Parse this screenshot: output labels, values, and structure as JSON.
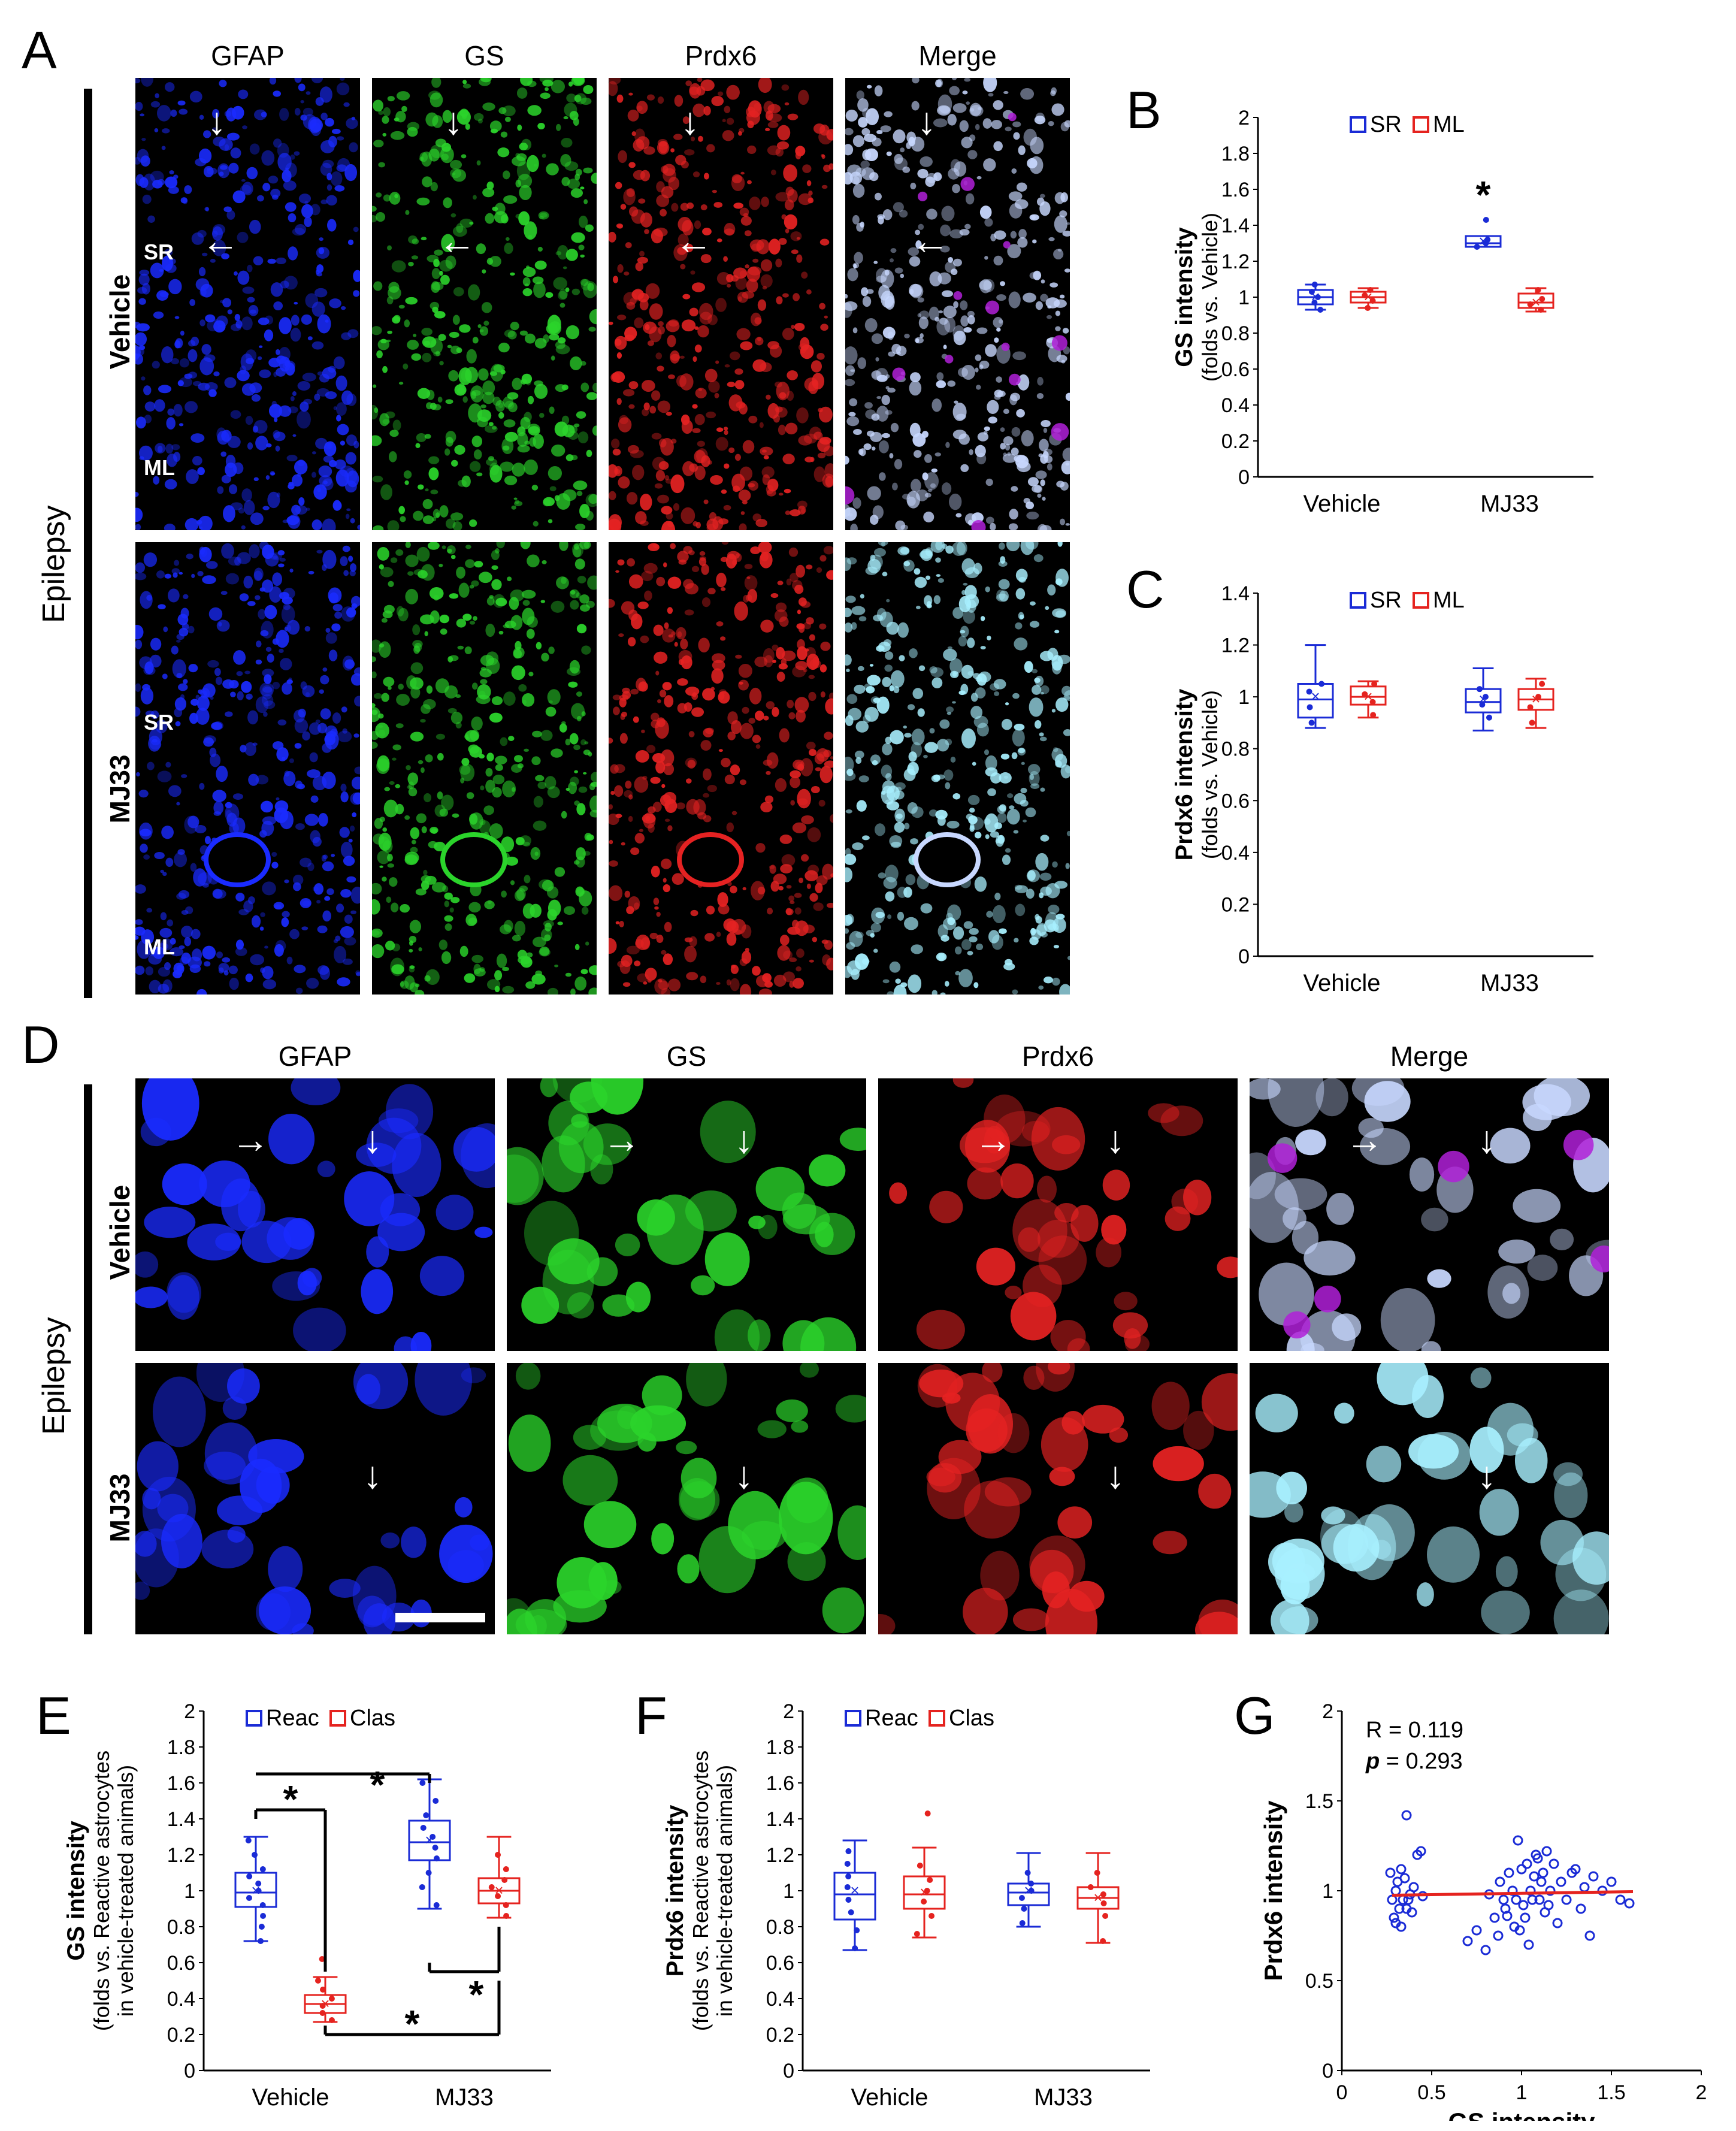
{
  "panel_labels": {
    "A": "A",
    "B": "B",
    "C": "C",
    "D": "D",
    "E": "E",
    "F": "F",
    "G": "G"
  },
  "channels": [
    "GFAP",
    "GS",
    "Prdx6",
    "Merge"
  ],
  "rows": [
    "Vehicle",
    "MJ33"
  ],
  "condition": "Epilepsy",
  "layers": {
    "sr": "SR",
    "ml": "ML"
  },
  "colors": {
    "blue": "#1a2bd6",
    "red": "#e5231f",
    "green": "#28c828",
    "black": "#000000"
  },
  "chart_data": [
    {
      "id": "B",
      "type": "box",
      "ylabel": "GS intensity",
      "ylabel2": "(folds vs. Vehicle)",
      "categories": [
        "Vehicle",
        "MJ33"
      ],
      "legend": [
        "SR",
        "ML"
      ],
      "ylim": [
        0,
        2
      ],
      "yticks": [
        "0",
        "0.2",
        "0.4",
        "0.6",
        "0.8",
        "1",
        "1.2",
        "1.4",
        "1.6",
        "1.8",
        "2"
      ],
      "series": [
        {
          "name": "SR",
          "color": "#1a2bd6",
          "boxes": [
            {
              "min": 0.93,
              "q1": 0.96,
              "median": 1.0,
              "q3": 1.04,
              "max": 1.07,
              "mean": 1.0,
              "points": [
                0.93,
                0.97,
                1.0,
                1.03,
                1.07
              ]
            },
            {
              "min": 1.28,
              "q1": 1.28,
              "median": 1.3,
              "q3": 1.34,
              "max": 1.34,
              "mean": 1.31,
              "points": [
                1.28,
                1.3,
                1.32,
                1.43
              ]
            }
          ]
        },
        {
          "name": "ML",
          "color": "#e5231f",
          "boxes": [
            {
              "min": 0.94,
              "q1": 0.97,
              "median": 1.0,
              "q3": 1.03,
              "max": 1.05,
              "mean": 1.0,
              "points": [
                0.94,
                0.98,
                1.01,
                1.04
              ]
            },
            {
              "min": 0.92,
              "q1": 0.94,
              "median": 0.97,
              "q3": 1.02,
              "max": 1.05,
              "mean": 0.97,
              "points": [
                0.93,
                0.96,
                0.99,
                1.04
              ]
            }
          ]
        }
      ],
      "annotations": [
        "*"
      ]
    },
    {
      "id": "C",
      "type": "box",
      "ylabel": "Prdx6 intensity",
      "ylabel2": "(folds vs. Vehicle)",
      "categories": [
        "Vehicle",
        "MJ33"
      ],
      "legend": [
        "SR",
        "ML"
      ],
      "ylim": [
        0,
        1.4
      ],
      "yticks": [
        "0",
        "0.2",
        "0.4",
        "0.6",
        "0.8",
        "1",
        "1.2",
        "1.4"
      ],
      "series": [
        {
          "name": "SR",
          "color": "#1a2bd6",
          "boxes": [
            {
              "min": 0.88,
              "q1": 0.92,
              "median": 0.99,
              "q3": 1.05,
              "max": 1.2,
              "mean": 1.0,
              "points": [
                0.9,
                0.96,
                1.02,
                1.05
              ]
            },
            {
              "min": 0.87,
              "q1": 0.94,
              "median": 0.98,
              "q3": 1.03,
              "max": 1.11,
              "mean": 0.99,
              "points": [
                0.92,
                0.97,
                1.0,
                1.03
              ]
            }
          ]
        },
        {
          "name": "ML",
          "color": "#e5231f",
          "boxes": [
            {
              "min": 0.92,
              "q1": 0.97,
              "median": 1.0,
              "q3": 1.04,
              "max": 1.06,
              "mean": 1.0,
              "points": [
                0.93,
                0.98,
                1.01,
                1.05
              ]
            },
            {
              "min": 0.88,
              "q1": 0.95,
              "median": 0.99,
              "q3": 1.03,
              "max": 1.07,
              "mean": 0.99,
              "points": [
                0.9,
                0.96,
                1.0,
                1.05
              ]
            }
          ]
        }
      ]
    },
    {
      "id": "E",
      "type": "box",
      "ylabel": "GS intensity",
      "ylabel2": "(folds vs. Reactive astrocytes",
      "ylabel3": "in vehicle-treated animals)",
      "categories": [
        "Vehicle",
        "MJ33"
      ],
      "legend": [
        "Reac",
        "Clas"
      ],
      "ylim": [
        0,
        2
      ],
      "yticks": [
        "0",
        "0.2",
        "0.4",
        "0.6",
        "0.8",
        "1",
        "1.2",
        "1.4",
        "1.6",
        "1.8",
        "2"
      ],
      "series": [
        {
          "name": "Reac",
          "color": "#1a2bd6",
          "boxes": [
            {
              "min": 0.72,
              "q1": 0.91,
              "median": 0.99,
              "q3": 1.1,
              "max": 1.3,
              "mean": 1.0,
              "points": [
                0.72,
                0.8,
                0.86,
                0.92,
                0.96,
                1.0,
                1.04,
                1.08,
                1.12,
                1.2,
                1.28
              ]
            },
            {
              "min": 0.9,
              "q1": 1.17,
              "median": 1.27,
              "q3": 1.39,
              "max": 1.62,
              "mean": 1.28,
              "points": [
                0.92,
                1.02,
                1.1,
                1.18,
                1.24,
                1.3,
                1.35,
                1.42,
                1.5,
                1.6
              ]
            }
          ]
        },
        {
          "name": "Clas",
          "color": "#e5231f",
          "boxes": [
            {
              "min": 0.27,
              "q1": 0.32,
              "median": 0.37,
              "q3": 0.42,
              "max": 0.52,
              "mean": 0.37,
              "points": [
                0.28,
                0.32,
                0.36,
                0.4,
                0.45,
                0.5,
                0.62
              ]
            },
            {
              "min": 0.85,
              "q1": 0.93,
              "median": 1.0,
              "q3": 1.07,
              "max": 1.3,
              "mean": 1.0,
              "points": [
                0.86,
                0.92,
                0.97,
                1.02,
                1.06,
                1.12,
                1.2
              ]
            }
          ]
        }
      ],
      "annotations": [
        "*",
        "*",
        "*",
        "*"
      ]
    },
    {
      "id": "F",
      "type": "box",
      "ylabel": "Prdx6 intensity",
      "ylabel2": "(folds vs. Reactive astrocytes",
      "ylabel3": "in vehicle-treated animals)",
      "categories": [
        "Vehicle",
        "MJ33"
      ],
      "legend": [
        "Reac",
        "Clas"
      ],
      "ylim": [
        0,
        2
      ],
      "yticks": [
        "0",
        "0.2",
        "0.4",
        "0.6",
        "0.8",
        "1",
        "1.2",
        "1.4",
        "1.6",
        "1.8",
        "2"
      ],
      "series": [
        {
          "name": "Reac",
          "color": "#1a2bd6",
          "boxes": [
            {
              "min": 0.67,
              "q1": 0.84,
              "median": 0.98,
              "q3": 1.1,
              "max": 1.28,
              "mean": 1.0,
              "points": [
                0.68,
                0.78,
                0.88,
                0.95,
                1.02,
                1.08,
                1.15,
                1.22
              ]
            },
            {
              "min": 0.8,
              "q1": 0.92,
              "median": 0.99,
              "q3": 1.04,
              "max": 1.21,
              "mean": 1.0,
              "points": [
                0.82,
                0.9,
                0.96,
                1.0,
                1.04,
                1.1
              ]
            }
          ]
        },
        {
          "name": "Clas",
          "color": "#e5231f",
          "boxes": [
            {
              "min": 0.74,
              "q1": 0.9,
              "median": 0.98,
              "q3": 1.08,
              "max": 1.24,
              "mean": 0.99,
              "points": [
                0.76,
                0.86,
                0.94,
                1.0,
                1.06,
                1.14,
                1.43
              ]
            },
            {
              "min": 0.71,
              "q1": 0.9,
              "median": 0.96,
              "q3": 1.02,
              "max": 1.21,
              "mean": 0.96,
              "points": [
                0.72,
                0.86,
                0.93,
                0.98,
                1.02,
                1.1
              ]
            }
          ]
        }
      ]
    },
    {
      "id": "G",
      "type": "scatter",
      "xlabel": "GS intensity",
      "ylabel": "Prdx6 intensity",
      "xlim": [
        0,
        2
      ],
      "ylim": [
        0,
        2
      ],
      "xticks": [
        "0",
        "0.5",
        "1",
        "1.5",
        "2"
      ],
      "yticks": [
        "0",
        "0.5",
        "1",
        "1.5",
        "2"
      ],
      "stats": {
        "r_label": "R = 0.119",
        "p_label": "p",
        "p_value": " = 0.293"
      },
      "fit": {
        "x0": 0.28,
        "y0": 0.975,
        "x1": 1.62,
        "y1": 0.995
      },
      "x": [
        0.27,
        0.28,
        0.29,
        0.3,
        0.31,
        0.32,
        0.33,
        0.34,
        0.35,
        0.36,
        0.37,
        0.38,
        0.39,
        0.4,
        0.42,
        0.44,
        0.45,
        0.3,
        0.33,
        0.36,
        0.7,
        0.75,
        0.8,
        0.82,
        0.85,
        0.87,
        0.88,
        0.9,
        0.91,
        0.92,
        0.93,
        0.95,
        0.96,
        0.97,
        0.98,
        0.99,
        1.0,
        1.01,
        1.02,
        1.03,
        1.04,
        1.05,
        1.06,
        1.07,
        1.08,
        1.09,
        1.1,
        1.11,
        1.12,
        1.13,
        1.14,
        1.15,
        1.16,
        1.18,
        1.2,
        1.22,
        1.25,
        1.28,
        1.3,
        1.33,
        1.35,
        1.38,
        1.4,
        1.45,
        1.5,
        1.55,
        1.6
      ],
      "y": [
        1.1,
        0.95,
        0.85,
        1.0,
        1.05,
        0.9,
        0.8,
        0.95,
        1.07,
        1.42,
        0.95,
        0.98,
        0.88,
        1.02,
        1.2,
        1.22,
        0.97,
        0.82,
        1.12,
        0.9,
        0.72,
        0.78,
        0.67,
        0.98,
        0.85,
        0.75,
        1.05,
        0.95,
        0.9,
        0.86,
        1.1,
        1.0,
        0.8,
        0.95,
        1.28,
        0.78,
        1.12,
        0.92,
        0.85,
        1.15,
        0.7,
        1.0,
        0.95,
        1.08,
        1.2,
        1.18,
        0.95,
        1.05,
        1.1,
        0.88,
        1.22,
        0.92,
        1.0,
        1.15,
        0.82,
        1.05,
        0.95,
        1.1,
        1.12,
        0.9,
        1.02,
        0.75,
        1.08,
        1.0,
        1.05,
        0.95,
        0.93
      ]
    }
  ]
}
